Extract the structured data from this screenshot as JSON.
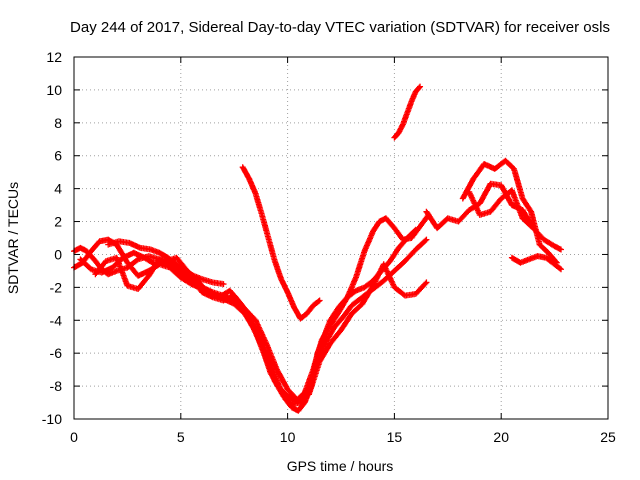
{
  "chart_data": {
    "type": "scatter",
    "title": "Day 244 of 2017, Sidereal Day-to-day VTEC variation (SDTVAR) for receiver osls",
    "xlabel": "GPS time / hours",
    "ylabel": "SDTVAR / TECUs",
    "xlim": [
      0,
      25
    ],
    "ylim": [
      -10,
      12
    ],
    "xticks": [
      0,
      5,
      10,
      15,
      20,
      25
    ],
    "yticks": [
      -10,
      -8,
      -6,
      -4,
      -2,
      0,
      2,
      4,
      6,
      8,
      10,
      12
    ],
    "grid": true,
    "marker": "+",
    "color": "#ff0000",
    "tracks": [
      {
        "x": [
          0.0,
          0.3,
          0.6,
          1.0,
          1.3,
          1.6,
          2.0,
          2.5,
          3.0,
          3.5,
          4.0,
          4.5,
          5.0,
          5.5,
          6.0,
          6.5,
          7.0,
          7.5,
          8.0,
          8.5,
          9.0,
          9.3,
          9.6,
          9.9,
          10.2,
          10.5,
          10.8,
          11.1,
          11.4,
          11.7,
          12.0,
          12.4,
          12.8,
          13.2,
          13.6,
          14.0,
          14.4,
          14.8,
          15.2,
          15.6,
          16.0
        ],
        "y": [
          0.2,
          0.4,
          0.2,
          -0.4,
          -0.9,
          -1.2,
          -1.0,
          -0.8,
          -0.3,
          -0.1,
          -0.3,
          -0.6,
          -1.2,
          -1.6,
          -2.0,
          -2.3,
          -2.5,
          -2.8,
          -3.5,
          -4.5,
          -6.0,
          -7.0,
          -8.0,
          -8.8,
          -9.3,
          -9.5,
          -9.0,
          -8.0,
          -6.0,
          -5.0,
          -4.0,
          -3.2,
          -2.6,
          -2.2,
          -2.0,
          -1.6,
          -1.0,
          -0.4,
          0.4,
          1.0,
          1.5
        ]
      },
      {
        "x": [
          0.0,
          0.4,
          0.8,
          1.2,
          1.6,
          2.0,
          2.5,
          3.0,
          3.5,
          4.0,
          4.5,
          5.0,
          5.5,
          6.0,
          6.5,
          7.0,
          7.5,
          8.0,
          8.5,
          9.0,
          9.4,
          9.8,
          10.2,
          10.6,
          11.0,
          11.4,
          11.8,
          12.2,
          12.6,
          13.0,
          13.5,
          14.0,
          14.5,
          15.0,
          15.5,
          16.0,
          16.5
        ],
        "y": [
          -0.8,
          -0.5,
          0.2,
          0.8,
          0.9,
          0.6,
          -0.5,
          -1.3,
          -1.0,
          -0.6,
          -0.8,
          -1.4,
          -1.8,
          -2.1,
          -2.4,
          -2.7,
          -3.0,
          -3.6,
          -4.7,
          -6.4,
          -7.7,
          -8.6,
          -9.1,
          -9.0,
          -8.2,
          -6.4,
          -5.3,
          -4.4,
          -3.8,
          -3.1,
          -2.6,
          -2.1,
          -1.6,
          -1.0,
          -0.4,
          0.3,
          0.9
        ]
      },
      {
        "x": [
          0.3,
          0.8,
          1.3,
          1.8,
          2.3,
          2.8,
          3.3,
          3.8,
          4.3,
          4.8,
          5.3,
          5.8,
          6.3,
          6.8,
          7.3,
          7.8,
          8.3,
          8.8,
          9.2,
          9.6,
          10.0,
          10.4,
          10.8,
          11.2,
          11.6,
          12.0,
          12.4,
          12.8,
          13.2,
          13.6,
          14.0,
          14.3,
          14.6,
          15.0,
          15.4,
          15.8,
          16.2,
          16.6
        ],
        "y": [
          -0.3,
          -0.9,
          -1.1,
          -0.8,
          -0.2,
          0.1,
          -0.2,
          -0.6,
          -0.4,
          -0.2,
          -1.0,
          -1.6,
          -2.4,
          -2.6,
          -2.2,
          -3.0,
          -4.2,
          -5.6,
          -7.2,
          -8.1,
          -8.6,
          -8.9,
          -8.4,
          -7.0,
          -5.2,
          -4.3,
          -3.5,
          -2.6,
          -1.4,
          0.2,
          1.4,
          2.0,
          2.2,
          1.6,
          0.9,
          1.0,
          1.7,
          2.4
        ]
      },
      {
        "x": [
          1.0,
          1.5,
          2.0,
          2.5,
          3.0,
          3.5,
          4.0,
          4.5,
          5.0,
          5.5,
          6.0,
          6.5,
          7.0,
          7.5,
          8.0,
          8.5,
          9.0,
          9.5,
          10.0,
          10.5,
          11.0,
          11.5,
          12.0,
          12.5,
          13.0,
          13.5,
          14.0,
          14.5,
          15.0,
          15.5,
          16.0,
          16.5
        ],
        "y": [
          -1.2,
          -0.4,
          -0.2,
          -1.9,
          -2.1,
          -1.3,
          -0.3,
          -0.4,
          -0.9,
          -1.4,
          -2.3,
          -2.6,
          -2.8,
          -2.5,
          -3.3,
          -4.0,
          -5.4,
          -7.0,
          -8.2,
          -8.9,
          -8.5,
          -6.5,
          -5.4,
          -4.6,
          -3.6,
          -3.0,
          -1.9,
          -0.6,
          -2.0,
          -2.5,
          -2.4,
          -1.7
        ]
      },
      {
        "x": [
          1.6,
          2.1,
          2.6,
          3.1,
          3.6,
          4.0,
          4.4,
          4.8,
          5.2,
          5.6,
          6.0,
          6.5,
          7.0
        ],
        "y": [
          0.6,
          0.8,
          0.7,
          0.4,
          0.3,
          0.1,
          -0.2,
          -0.6,
          -1.0,
          -1.3,
          -1.5,
          -1.7,
          -1.8
        ]
      },
      {
        "x": [
          7.9,
          8.2,
          8.5,
          8.8,
          9.1,
          9.4,
          9.7,
          10.0,
          10.3,
          10.6,
          10.9,
          11.2,
          11.5
        ],
        "y": [
          5.3,
          4.6,
          3.7,
          2.4,
          1.0,
          -0.4,
          -1.5,
          -2.3,
          -3.2,
          -3.9,
          -3.6,
          -3.1,
          -2.8
        ]
      },
      {
        "x": [
          15.0,
          15.2,
          15.4,
          15.6,
          15.8,
          16.0,
          16.2
        ],
        "y": [
          7.1,
          7.4,
          7.9,
          8.6,
          9.3,
          9.9,
          10.2
        ]
      },
      {
        "x": [
          16.5,
          17.0,
          17.5,
          18.0,
          18.5,
          19.0,
          19.5,
          20.0,
          20.5,
          21.0,
          21.5,
          22.0,
          22.5,
          22.8
        ],
        "y": [
          2.6,
          1.6,
          2.2,
          2.0,
          2.7,
          3.1,
          4.3,
          4.2,
          3.0,
          2.7,
          1.6,
          0.9,
          0.5,
          0.3
        ]
      },
      {
        "x": [
          18.2,
          18.7,
          19.2,
          19.7,
          20.2,
          20.6,
          21.0,
          21.4,
          21.8,
          22.2,
          22.6
        ],
        "y": [
          3.4,
          4.6,
          5.5,
          5.2,
          5.7,
          5.2,
          3.4,
          2.6,
          0.6,
          0.1,
          -0.5
        ]
      },
      {
        "x": [
          18.5,
          19.0,
          19.5,
          20.0,
          20.5,
          21.0,
          21.5
        ],
        "y": [
          3.8,
          2.4,
          2.6,
          3.4,
          3.9,
          2.2,
          1.6
        ]
      },
      {
        "x": [
          20.5,
          20.9,
          21.3,
          21.7,
          22.1,
          22.5,
          22.8
        ],
        "y": [
          -0.2,
          -0.5,
          -0.3,
          -0.1,
          -0.2,
          -0.6,
          -0.9
        ]
      }
    ]
  }
}
